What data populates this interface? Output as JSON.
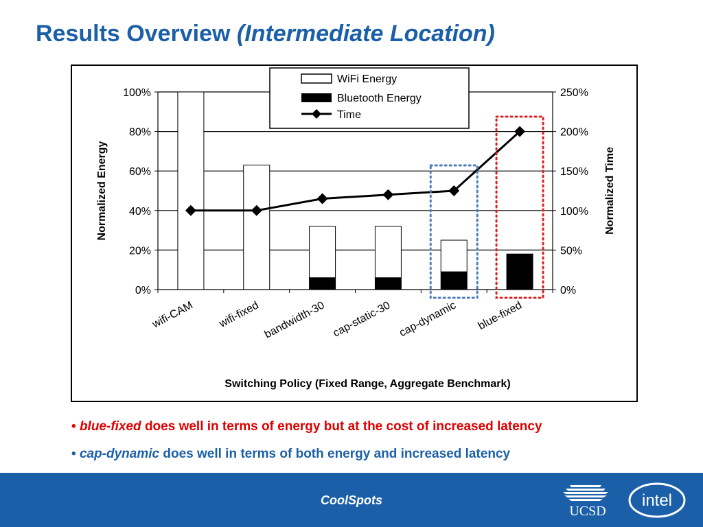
{
  "slide": {
    "title_main": "Results Overview ",
    "title_italic": "(Intermediate Location)"
  },
  "chart_data": {
    "type": "bar",
    "stacked": true,
    "categories": [
      "wifi-CAM",
      "wifi-fixed",
      "bandwidth-30",
      "cap-static-30",
      "cap-dynamic",
      "blue-fixed"
    ],
    "series": [
      {
        "name": "WiFi Energy",
        "axis": "left",
        "color": "#ffffff",
        "values": [
          100,
          63,
          26,
          26,
          16,
          0
        ]
      },
      {
        "name": "Bluetooth Energy",
        "axis": "left",
        "color": "#000000",
        "values": [
          0,
          0,
          6,
          6,
          9,
          18
        ]
      },
      {
        "name": "Time",
        "axis": "right",
        "type": "line",
        "marker": "diamond",
        "color": "#000000",
        "values": [
          100,
          100,
          115,
          120,
          125,
          200
        ]
      }
    ],
    "xlabel": "Switching Policy (Fixed Range, Aggregate Benchmark)",
    "ylabel_left": "Normalized Energy",
    "ylabel_right": "Normalized Time",
    "ylim_left": [
      0,
      100
    ],
    "ylim_right": [
      0,
      250
    ],
    "yticks_left": [
      "0%",
      "20%",
      "40%",
      "60%",
      "80%",
      "100%"
    ],
    "yticks_right": [
      "0%",
      "50%",
      "100%",
      "150%",
      "200%",
      "250%"
    ],
    "legend_position": "top-center",
    "highlights": [
      {
        "category": "cap-dynamic",
        "style": "dotted",
        "color": "#4a7bbd"
      },
      {
        "category": "blue-fixed",
        "style": "dotted",
        "color": "#e02020"
      }
    ]
  },
  "bullets": [
    {
      "em": "blue-fixed",
      "text": " does well in terms of energy but at the cost of increased latency",
      "color": "#e00000"
    },
    {
      "em": "cap-dynamic",
      "text": " does well in terms of both energy and increased latency",
      "color": "#1a5fa8"
    }
  ],
  "footer": {
    "text": "CoolSpots",
    "logo_left": "UCSD",
    "logo_right": "intel"
  }
}
